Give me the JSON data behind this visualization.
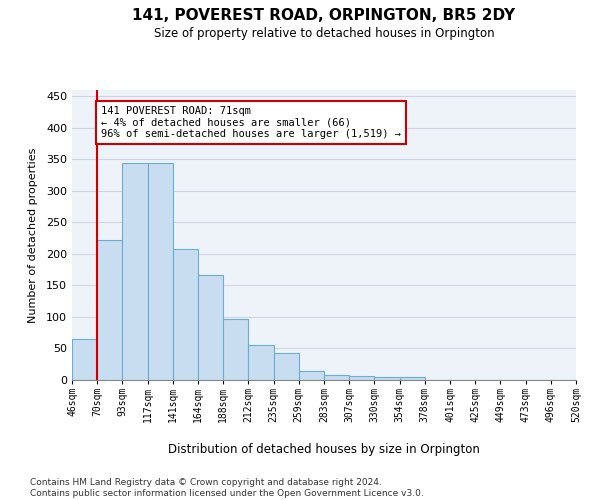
{
  "title": "141, POVEREST ROAD, ORPINGTON, BR5 2DY",
  "subtitle": "Size of property relative to detached houses in Orpington",
  "xlabel": "Distribution of detached houses by size in Orpington",
  "ylabel": "Number of detached properties",
  "bin_labels": [
    "46sqm",
    "70sqm",
    "93sqm",
    "117sqm",
    "141sqm",
    "164sqm",
    "188sqm",
    "212sqm",
    "235sqm",
    "259sqm",
    "283sqm",
    "307sqm",
    "330sqm",
    "354sqm",
    "378sqm",
    "401sqm",
    "425sqm",
    "449sqm",
    "473sqm",
    "496sqm",
    "520sqm"
  ],
  "bar_heights": [
    65,
    222,
    345,
    345,
    208,
    167,
    97,
    56,
    43,
    14,
    8,
    7,
    5,
    5,
    0,
    0,
    0,
    0,
    0,
    0
  ],
  "bar_color": "#c9ddf0",
  "bar_edge_color": "#6aaed6",
  "red_line_x": 1,
  "annotation_title": "141 POVEREST ROAD: 71sqm",
  "annotation_line1": "← 4% of detached houses are smaller (66)",
  "annotation_line2": "96% of semi-detached houses are larger (1,519) →",
  "red_color": "#cc0000",
  "ylim_max": 460,
  "yticks": [
    0,
    50,
    100,
    150,
    200,
    250,
    300,
    350,
    400,
    450
  ],
  "footer1": "Contains HM Land Registry data © Crown copyright and database right 2024.",
  "footer2": "Contains public sector information licensed under the Open Government Licence v3.0.",
  "plot_bg": "#eef2f9",
  "grid_color": "#cdd5e5"
}
